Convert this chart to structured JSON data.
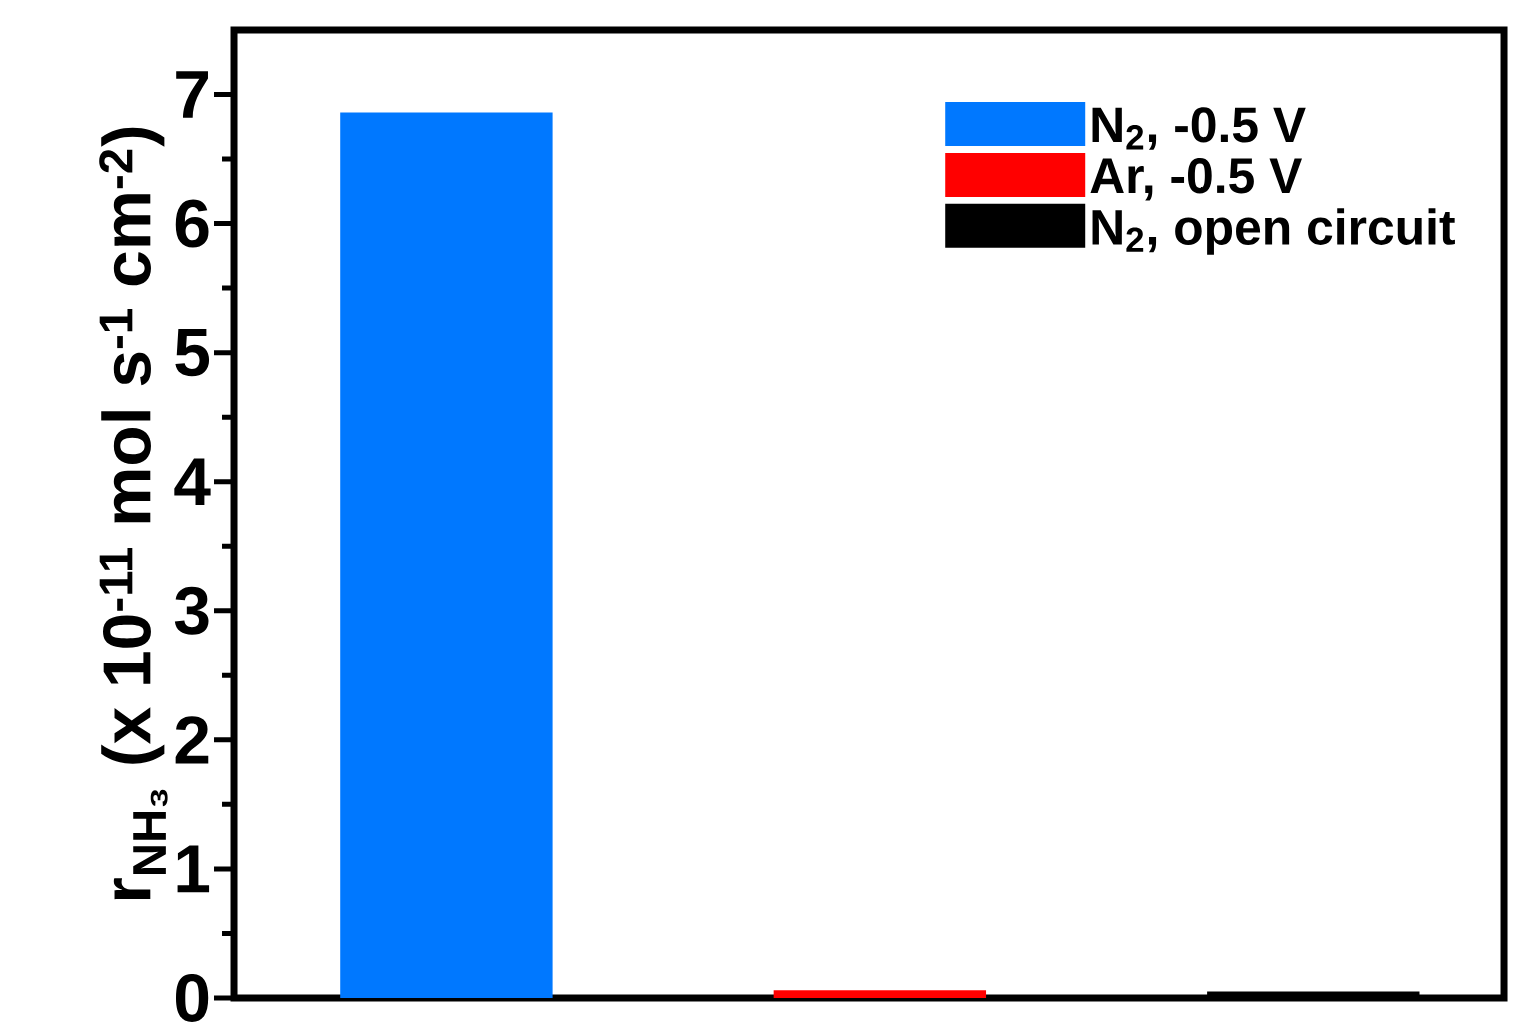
{
  "chart_data": {
    "type": "bar",
    "ylabel": "r$_{NH₃}$ (x 10$^{-11}$ mol s$^{-1}$ cm$^{-2}$)",
    "categories": [
      null,
      null,
      null
    ],
    "series": [
      {
        "name": "N$_{2}$, -0.5 V",
        "color": "#0078ff",
        "values": [
          6.86,
          null,
          null
        ]
      },
      {
        "name": "Ar, -0.5 V",
        "color": "#ff0000",
        "values": [
          null,
          0.06,
          null
        ]
      },
      {
        "name": "N$_{2}$, open circuit",
        "color": "#000000",
        "values": [
          null,
          null,
          0.05
        ]
      }
    ],
    "stacked": true,
    "ylim": [
      0,
      7.5
    ],
    "yticks": [
      0,
      1,
      2,
      3,
      4,
      5,
      6,
      7
    ],
    "tick_labels": "y",
    "legend": "top right",
    "grid": false
  }
}
